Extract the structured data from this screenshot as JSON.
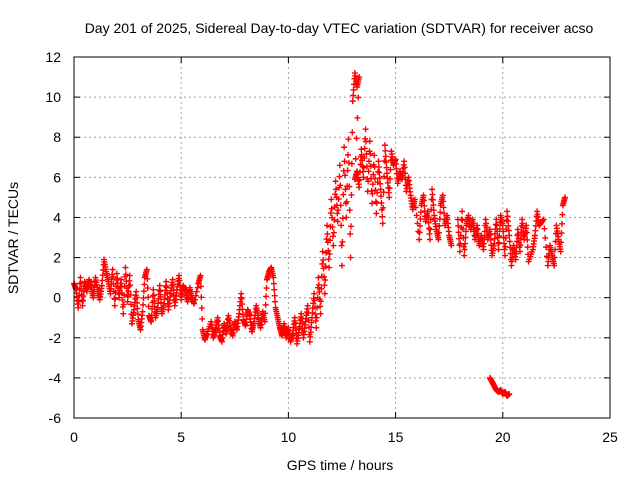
{
  "chart_data": {
    "type": "scatter",
    "title": "Day 201 of 2025, Sidereal Day-to-day VTEC variation (SDTVAR) for receiver acso",
    "xlabel": "GPS time / hours",
    "ylabel": "SDTVAR / TECUs",
    "xlim": [
      0,
      25
    ],
    "ylim": [
      -6,
      12
    ],
    "x_ticks": [
      0,
      5,
      10,
      15,
      20,
      25
    ],
    "y_ticks": [
      -6,
      -4,
      -2,
      0,
      2,
      4,
      6,
      8,
      10,
      12
    ],
    "grid": true,
    "marker": "+",
    "series": [
      {
        "name": "SDTVAR",
        "color": "#ff0000",
        "points": [
          [
            0.0,
            0.7
          ],
          [
            0.1,
            0.4
          ],
          [
            0.2,
            -0.5
          ],
          [
            0.3,
            1.0
          ],
          [
            0.4,
            -0.4
          ],
          [
            0.5,
            0.8
          ],
          [
            0.6,
            0.3
          ],
          [
            0.7,
            0.9
          ],
          [
            0.8,
            0.5
          ],
          [
            0.9,
            0.0
          ],
          [
            1.0,
            1.0
          ],
          [
            1.1,
            0.4
          ],
          [
            1.2,
            -0.1
          ],
          [
            1.3,
            0.6
          ],
          [
            1.4,
            1.9
          ],
          [
            1.5,
            1.3
          ],
          [
            1.6,
            0.8
          ],
          [
            1.7,
            0.2
          ],
          [
            1.8,
            1.4
          ],
          [
            1.9,
            -0.4
          ],
          [
            2.0,
            1.2
          ],
          [
            2.1,
            0.0
          ],
          [
            2.2,
            0.9
          ],
          [
            2.3,
            -0.8
          ],
          [
            2.4,
            1.5
          ],
          [
            2.5,
            -0.2
          ],
          [
            2.6,
            1.1
          ],
          [
            2.7,
            -1.3
          ],
          [
            2.8,
            -0.6
          ],
          [
            2.9,
            0.3
          ],
          [
            3.0,
            -1.1
          ],
          [
            3.1,
            -1.6
          ],
          [
            3.2,
            -0.7
          ],
          [
            3.3,
            1.0
          ],
          [
            3.4,
            1.4
          ],
          [
            3.5,
            -0.9
          ],
          [
            3.6,
            -1.2
          ],
          [
            3.7,
            0.4
          ],
          [
            3.8,
            -1.0
          ],
          [
            3.9,
            -0.5
          ],
          [
            4.0,
            0.6
          ],
          [
            4.1,
            -0.8
          ],
          [
            4.2,
            -0.3
          ],
          [
            4.3,
            0.8
          ],
          [
            4.4,
            -0.6
          ],
          [
            4.5,
            0.2
          ],
          [
            4.6,
            0.9
          ],
          [
            4.7,
            -0.4
          ],
          [
            4.8,
            0.4
          ],
          [
            4.9,
            1.1
          ],
          [
            5.0,
            -0.1
          ],
          [
            5.1,
            0.6
          ],
          [
            5.2,
            0.3
          ],
          [
            5.3,
            -0.2
          ],
          [
            5.4,
            0.5
          ],
          [
            5.5,
            0.0
          ],
          [
            5.6,
            -0.3
          ],
          [
            5.8,
            0.7
          ],
          [
            5.9,
            1.1
          ],
          [
            6.0,
            -1.6
          ],
          [
            6.1,
            -2.1
          ],
          [
            6.2,
            -1.8
          ],
          [
            6.4,
            -1.2
          ],
          [
            6.5,
            -2.0
          ],
          [
            6.6,
            -1.6
          ],
          [
            6.7,
            -1.0
          ],
          [
            6.8,
            -1.9
          ],
          [
            6.9,
            -2.2
          ],
          [
            7.0,
            -1.3
          ],
          [
            7.1,
            -1.8
          ],
          [
            7.2,
            -0.9
          ],
          [
            7.3,
            -1.5
          ],
          [
            7.4,
            -1.9
          ],
          [
            7.5,
            -1.2
          ],
          [
            7.6,
            -1.6
          ],
          [
            7.7,
            -0.8
          ],
          [
            7.8,
            0.2
          ],
          [
            7.9,
            -1.1
          ],
          [
            8.0,
            -1.4
          ],
          [
            8.1,
            -0.6
          ],
          [
            8.2,
            -0.9
          ],
          [
            8.3,
            -1.7
          ],
          [
            8.4,
            -1.2
          ],
          [
            8.5,
            -0.4
          ],
          [
            8.6,
            -1.0
          ],
          [
            8.7,
            -1.5
          ],
          [
            8.8,
            -0.7
          ],
          [
            8.9,
            -1.2
          ],
          [
            9.0,
            0.9
          ],
          [
            9.1,
            1.3
          ],
          [
            9.2,
            1.5
          ],
          [
            9.3,
            1.0
          ],
          [
            9.4,
            -0.5
          ],
          [
            9.5,
            -1.0
          ],
          [
            9.6,
            -1.5
          ],
          [
            9.7,
            -1.9
          ],
          [
            9.8,
            -1.3
          ],
          [
            9.9,
            -2.0
          ],
          [
            10.0,
            -1.5
          ],
          [
            10.1,
            -2.2
          ],
          [
            10.2,
            -1.8
          ],
          [
            10.3,
            -1.0
          ],
          [
            10.4,
            -2.3
          ],
          [
            10.5,
            -1.6
          ],
          [
            10.6,
            -0.8
          ],
          [
            10.7,
            -2.0
          ],
          [
            10.8,
            -1.2
          ],
          [
            10.9,
            -0.4
          ],
          [
            11.0,
            -2.2
          ],
          [
            11.1,
            -1.0
          ],
          [
            11.2,
            0.2
          ],
          [
            11.3,
            -1.5
          ],
          [
            11.4,
            1.0
          ],
          [
            11.5,
            -0.8
          ],
          [
            11.6,
            2.3
          ],
          [
            11.7,
            0.2
          ],
          [
            11.8,
            3.6
          ],
          [
            11.9,
            1.5
          ],
          [
            12.0,
            4.9
          ],
          [
            12.1,
            2.6
          ],
          [
            12.2,
            5.8
          ],
          [
            12.3,
            3.8
          ],
          [
            12.4,
            6.6
          ],
          [
            12.5,
            1.6
          ],
          [
            12.6,
            7.5
          ],
          [
            12.7,
            4.0
          ],
          [
            12.8,
            7.9
          ],
          [
            12.9,
            2.0
          ],
          [
            13.0,
            9.8
          ],
          [
            13.1,
            11.2
          ],
          [
            13.2,
            10.5
          ],
          [
            13.3,
            11.0
          ],
          [
            13.1,
            5.9
          ],
          [
            13.2,
            6.3
          ],
          [
            13.3,
            5.5
          ],
          [
            13.4,
            7.4
          ],
          [
            13.5,
            6.0
          ],
          [
            13.6,
            8.4
          ],
          [
            13.7,
            5.3
          ],
          [
            13.8,
            7.8
          ],
          [
            13.9,
            4.7
          ],
          [
            14.0,
            7.1
          ],
          [
            14.1,
            4.2
          ],
          [
            14.2,
            6.8
          ],
          [
            14.3,
            5.4
          ],
          [
            14.4,
            3.7
          ],
          [
            14.5,
            7.6
          ],
          [
            14.6,
            6.2
          ],
          [
            14.7,
            5.0
          ],
          [
            14.8,
            7.3
          ],
          [
            14.9,
            6.6
          ],
          [
            15.0,
            6.9
          ],
          [
            15.1,
            5.7
          ],
          [
            15.2,
            6.3
          ],
          [
            15.3,
            5.9
          ],
          [
            15.4,
            6.8
          ],
          [
            15.5,
            5.3
          ],
          [
            15.6,
            6.0
          ],
          [
            15.7,
            5.1
          ],
          [
            15.8,
            4.4
          ],
          [
            15.9,
            4.9
          ],
          [
            16.1,
            2.9
          ],
          [
            16.2,
            4.6
          ],
          [
            16.3,
            5.1
          ],
          [
            16.4,
            3.8
          ],
          [
            16.5,
            4.3
          ],
          [
            16.6,
            2.9
          ],
          [
            16.7,
            5.4
          ],
          [
            16.8,
            4.1
          ],
          [
            16.9,
            3.4
          ],
          [
            17.0,
            2.9
          ],
          [
            17.1,
            4.6
          ],
          [
            17.2,
            5.1
          ],
          [
            17.3,
            3.6
          ],
          [
            17.4,
            4.1
          ],
          [
            17.5,
            3.1
          ],
          [
            17.6,
            2.6
          ],
          [
            17.9,
            3.9
          ],
          [
            18.0,
            2.3
          ],
          [
            18.1,
            4.3
          ],
          [
            18.2,
            2.1
          ],
          [
            18.3,
            3.6
          ],
          [
            18.4,
            4.1
          ],
          [
            18.5,
            3.4
          ],
          [
            18.6,
            3.9
          ],
          [
            18.7,
            2.9
          ],
          [
            18.8,
            3.6
          ],
          [
            18.9,
            2.6
          ],
          [
            19.0,
            3.1
          ],
          [
            19.1,
            2.4
          ],
          [
            19.2,
            3.9
          ],
          [
            19.3,
            2.9
          ],
          [
            19.4,
            3.4
          ],
          [
            19.5,
            2.1
          ],
          [
            19.6,
            2.7
          ],
          [
            19.7,
            3.9
          ],
          [
            19.8,
            2.4
          ],
          [
            19.9,
            4.1
          ],
          [
            20.0,
            3.6
          ],
          [
            20.1,
            2.1
          ],
          [
            20.2,
            4.3
          ],
          [
            20.3,
            3.1
          ],
          [
            20.4,
            1.6
          ],
          [
            20.5,
            2.6
          ],
          [
            20.6,
            1.9
          ],
          [
            20.7,
            3.4
          ],
          [
            20.8,
            2.3
          ],
          [
            20.9,
            3.9
          ],
          [
            21.0,
            2.9
          ],
          [
            21.1,
            3.6
          ],
          [
            21.2,
            1.8
          ],
          [
            21.4,
            2.4
          ],
          [
            21.5,
            3.1
          ],
          [
            21.6,
            4.3
          ],
          [
            21.7,
            3.6
          ],
          [
            21.9,
            3.9
          ],
          [
            22.1,
            1.6
          ],
          [
            22.2,
            2.6
          ],
          [
            22.3,
            2.1
          ],
          [
            22.4,
            1.6
          ],
          [
            22.5,
            3.6
          ],
          [
            22.6,
            2.9
          ],
          [
            22.7,
            2.3
          ],
          [
            22.8,
            4.6
          ],
          [
            22.9,
            5.0
          ],
          [
            19.4,
            -4.0
          ],
          [
            19.5,
            -4.2
          ],
          [
            19.6,
            -4.4
          ],
          [
            19.7,
            -4.6
          ],
          [
            19.8,
            -4.7
          ],
          [
            19.9,
            -4.6
          ],
          [
            20.0,
            -4.8
          ],
          [
            20.1,
            -4.7
          ],
          [
            20.2,
            -4.9
          ],
          [
            20.3,
            -4.8
          ]
        ]
      }
    ]
  }
}
